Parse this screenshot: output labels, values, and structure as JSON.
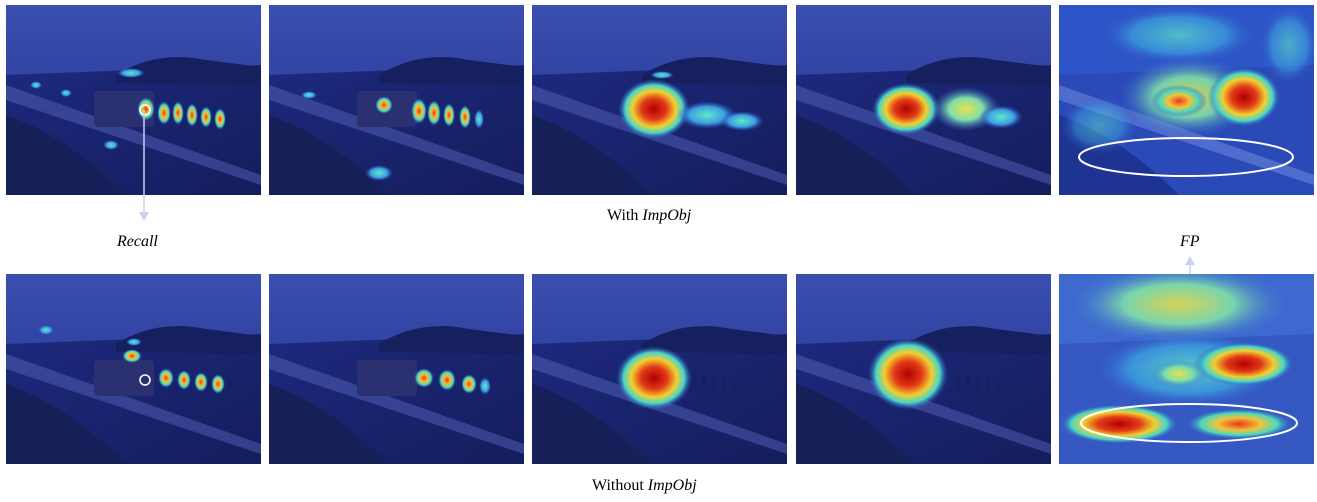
{
  "figure": {
    "row_top": {
      "caption_prefix": "With ",
      "caption_emph": "ImpObj",
      "side_label_left": "Recall",
      "panels": [
        {
          "name": "heatmap-with-1"
        },
        {
          "name": "heatmap-with-2"
        },
        {
          "name": "heatmap-with-3"
        },
        {
          "name": "heatmap-with-4"
        },
        {
          "name": "heatmap-with-5"
        }
      ]
    },
    "row_bottom": {
      "caption_prefix": "Without ",
      "caption_emph": "ImpObj",
      "side_label_right": "FP",
      "panels": [
        {
          "name": "heatmap-without-1"
        },
        {
          "name": "heatmap-without-2"
        },
        {
          "name": "heatmap-without-3"
        },
        {
          "name": "heatmap-without-4"
        },
        {
          "name": "heatmap-without-5"
        }
      ]
    }
  },
  "colors": {
    "scene_blue": "#1c2a8c",
    "hot_red": "#d42a1a",
    "warm_yellow": "#e7d43a",
    "cool_cyan": "#3fd0d8",
    "marker_white": "#ffffff"
  }
}
